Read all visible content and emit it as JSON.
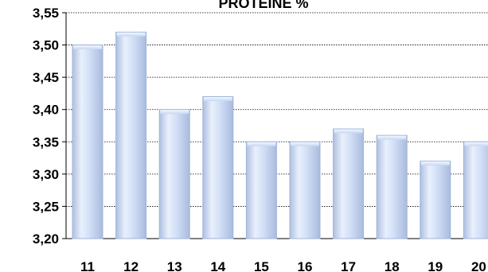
{
  "chart_data": {
    "type": "bar",
    "title": "PROTEINE %",
    "categories": [
      "11",
      "12",
      "13",
      "14",
      "15",
      "16",
      "17",
      "18",
      "19",
      "20"
    ],
    "values": [
      3.5,
      3.52,
      3.4,
      3.42,
      3.35,
      3.35,
      3.37,
      3.36,
      3.32,
      3.35
    ],
    "ylim": [
      3.2,
      3.55
    ],
    "yticks": [
      "3,20",
      "3,25",
      "3,30",
      "3,35",
      "3,40",
      "3,45",
      "3,50",
      "3,55"
    ],
    "grid": true,
    "colors": {
      "bar_fill": "#cfdcf5",
      "bar_edge": "#9fb4db",
      "grid": "#000000"
    }
  }
}
